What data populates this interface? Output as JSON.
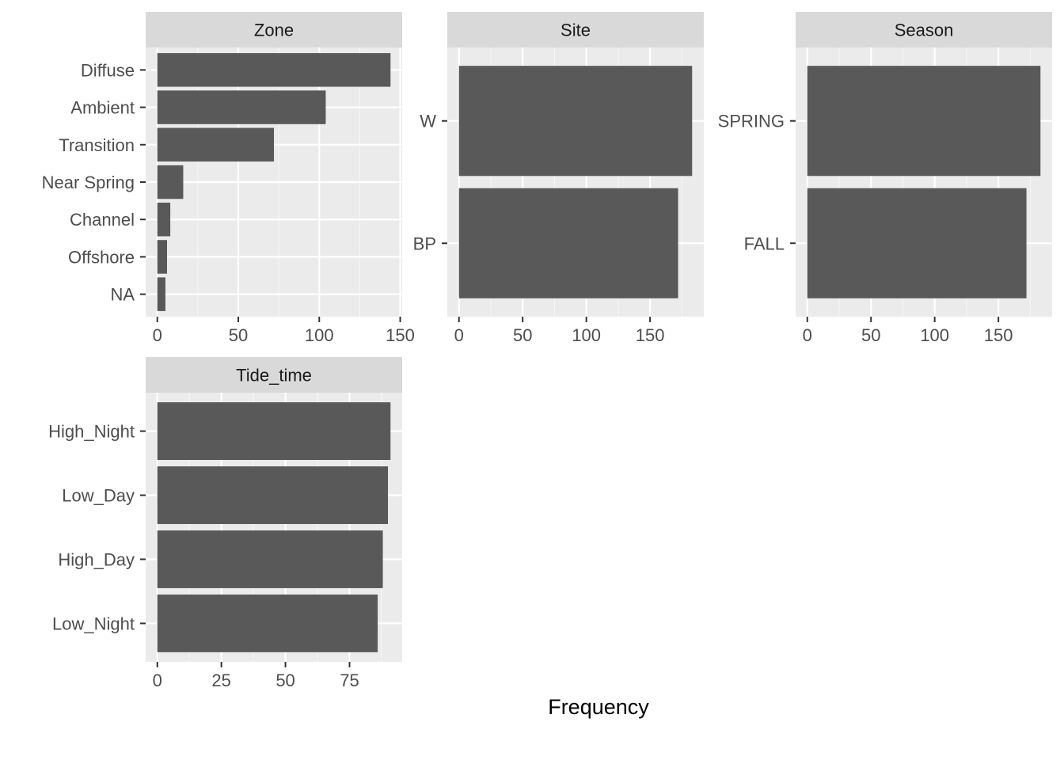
{
  "chart_data": {
    "type": "bar",
    "orientation": "horizontal",
    "xlabel": "Frequency",
    "grid": true,
    "colors": {
      "bar": "#595959",
      "panel_bg": "#ebebeb",
      "strip_bg": "#d9d9d9",
      "grid_major": "#ffffff",
      "grid_minor": "#f5f5f5"
    },
    "panels": [
      {
        "title": "Zone",
        "categories": [
          "Diffuse",
          "Ambient",
          "Transition",
          "Near Spring",
          "Channel",
          "Offshore",
          "NA"
        ],
        "values": [
          144,
          104,
          72,
          16,
          8,
          6,
          5
        ],
        "xlim": [
          -7.2,
          151.2
        ],
        "xticks": [
          0,
          50,
          100,
          150
        ]
      },
      {
        "title": "Site",
        "categories": [
          "W",
          "BP"
        ],
        "values": [
          183,
          172
        ],
        "xlim": [
          -9.15,
          192.15
        ],
        "xticks": [
          0,
          50,
          100,
          150
        ]
      },
      {
        "title": "Season",
        "categories": [
          "SPRING",
          "FALL"
        ],
        "values": [
          183,
          172
        ],
        "xlim": [
          -9.15,
          192.15
        ],
        "xticks": [
          0,
          50,
          100,
          150
        ]
      },
      {
        "title": "Tide_time",
        "categories": [
          "High_Night",
          "Low_Day",
          "High_Day",
          "Low_Night"
        ],
        "values": [
          91,
          90,
          88,
          86
        ],
        "xlim": [
          -4.55,
          95.55
        ],
        "xticks": [
          0,
          25,
          50,
          75
        ]
      }
    ]
  }
}
